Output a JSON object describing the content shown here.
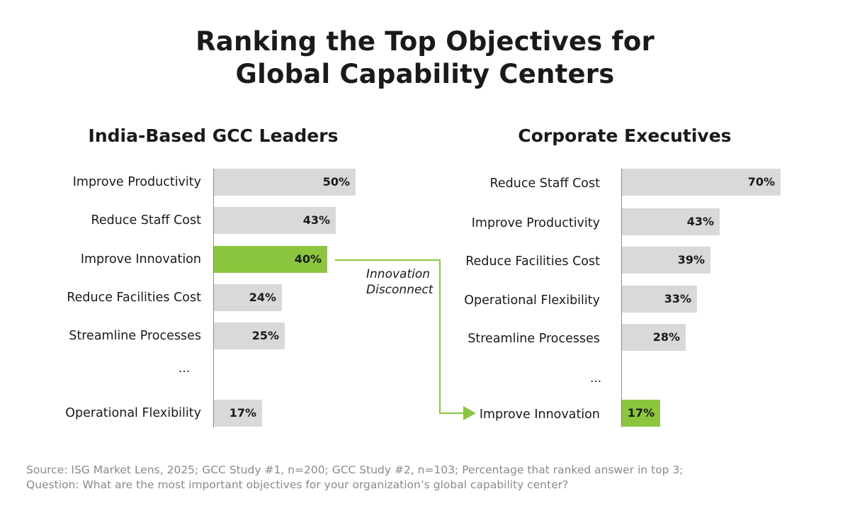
{
  "title": {
    "line1": "Ranking the Top Objectives for",
    "line2": "Global Capability Centers"
  },
  "colors": {
    "bar": "#d9d9d9",
    "highlight": "#8cc63f",
    "axis": "#888888",
    "source_text": "#8a8a8a"
  },
  "chart_data": [
    {
      "type": "bar",
      "orientation": "horizontal",
      "title": "India-Based GCC Leaders",
      "categories": [
        "Improve Productivity",
        "Reduce Staff Cost",
        "Improve Innovation",
        "Reduce Facilities Cost",
        "Streamline Processes",
        "Operational Flexibility"
      ],
      "values": [
        50,
        43,
        40,
        24,
        25,
        17
      ],
      "value_labels": [
        "50%",
        "43%",
        "40%",
        "24%",
        "25%",
        "17%"
      ],
      "highlight": "Improve Innovation",
      "gap_marker": "...",
      "gap_before_index": 5,
      "unit": "%"
    },
    {
      "type": "bar",
      "orientation": "horizontal",
      "title": "Corporate Executives",
      "categories": [
        "Reduce Staff Cost",
        "Improve Productivity",
        "Reduce Facilities Cost",
        "Operational Flexibility",
        "Streamline Processes",
        "Improve Innovation"
      ],
      "values": [
        70,
        43,
        39,
        33,
        28,
        17
      ],
      "value_labels": [
        "70%",
        "43%",
        "39%",
        "33%",
        "28%",
        "17%"
      ],
      "highlight": "Improve Innovation",
      "gap_marker": "...",
      "gap_before_index": 5,
      "unit": "%"
    }
  ],
  "annotation": {
    "line1": "Innovation",
    "line2": "Disconnect"
  },
  "source": {
    "line1": "Source: ISG Market Lens, 2025; GCC Study #1, n=200; GCC Study #2, n=103; Percentage that ranked answer in top 3;",
    "line2": "Question: What are the most important objectives for your organization’s global capability center?"
  }
}
